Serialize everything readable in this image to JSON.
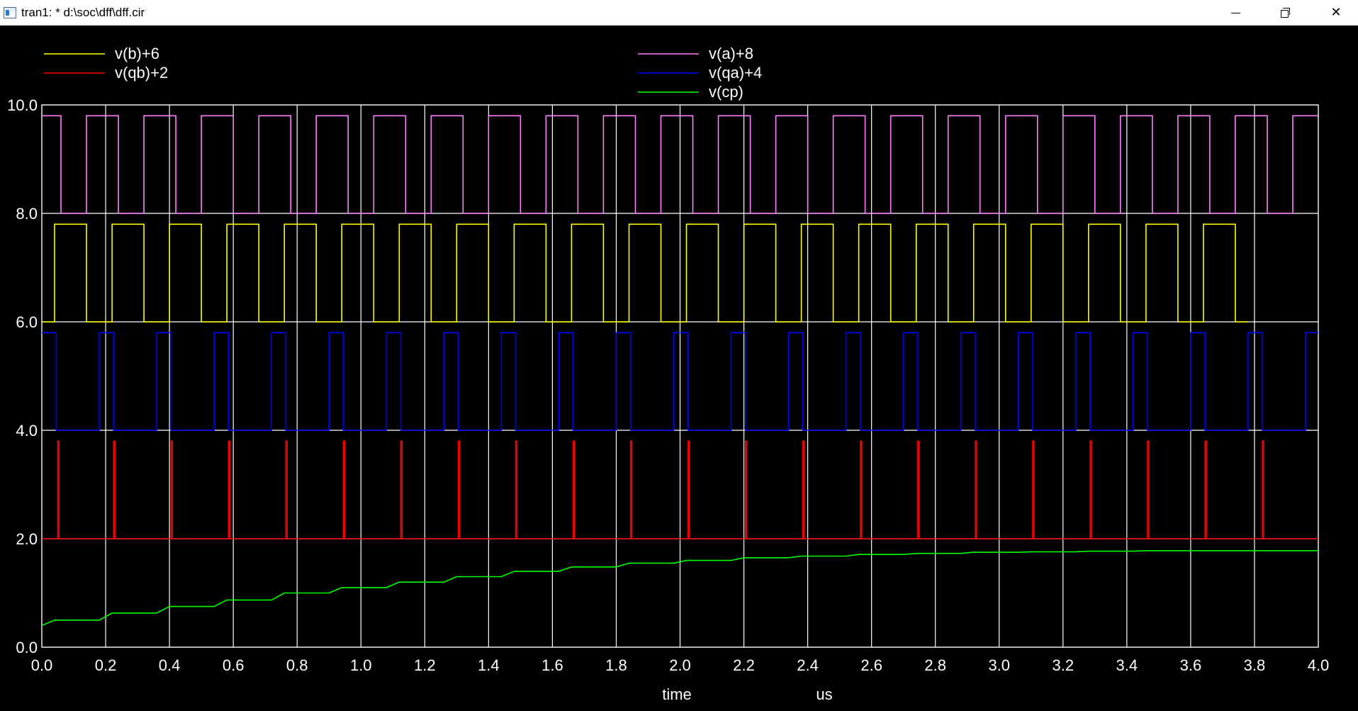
{
  "window": {
    "title": "tran1: * d:\\soc\\dff\\dff.cir",
    "minimize_label": "",
    "maximize_label": "",
    "close_label": "✕"
  },
  "chart_data": {
    "type": "line",
    "title": "",
    "xlabel": "time",
    "xunit": "us",
    "ylabel": "",
    "xlim": [
      0,
      4.0
    ],
    "ylim": [
      0,
      10.0
    ],
    "grid": true,
    "legend_position": "top",
    "x_ticks": [
      "0.0",
      "0.2",
      "0.4",
      "0.6",
      "0.8",
      "1.0",
      "1.2",
      "1.4",
      "1.6",
      "1.8",
      "2.0",
      "2.2",
      "2.4",
      "2.6",
      "2.8",
      "3.0",
      "3.2",
      "3.4",
      "3.6",
      "3.8",
      "4.0"
    ],
    "y_ticks": [
      "0.0",
      "2.0",
      "4.0",
      "6.0",
      "8.0",
      "10.0"
    ],
    "series": [
      {
        "name": "v(b)+6",
        "color": "#ffff00",
        "kind": "square",
        "low": 6.0,
        "high": 7.8,
        "period": 0.18,
        "high_start": 0.04,
        "high_end": 0.14,
        "t_end": 3.78
      },
      {
        "name": "v(a)+8",
        "color": "#ff80ff",
        "kind": "square",
        "low": 8.0,
        "high": 9.8,
        "period": 0.18,
        "high_start": -0.04,
        "high_end": 0.06,
        "t_end": 4.0
      },
      {
        "name": "v(qb)+2",
        "color": "#ff0000",
        "kind": "spikes",
        "low": 2.0,
        "high": 3.8,
        "times": [
          0.05,
          0.225,
          0.405,
          0.585,
          0.765,
          0.945,
          1.125,
          1.305,
          1.485,
          1.665,
          1.845,
          2.025,
          2.205,
          2.385,
          2.565,
          2.745,
          2.925,
          3.105,
          3.285,
          3.465,
          3.645,
          3.825
        ],
        "t_end": 4.0
      },
      {
        "name": "v(qa)+4",
        "color": "#0000ff",
        "kind": "square",
        "low": 4.0,
        "high": 5.8,
        "period": 0.18,
        "high_start": 0.0,
        "high_end": 0.045,
        "t_end": 4.0
      },
      {
        "name": "v(cp)",
        "color": "#00ff00",
        "kind": "staircase",
        "start": 0.4,
        "points": [
          [
            0.0,
            0.4
          ],
          [
            0.04,
            0.5
          ],
          [
            0.18,
            0.5
          ],
          [
            0.22,
            0.63
          ],
          [
            0.36,
            0.63
          ],
          [
            0.4,
            0.75
          ],
          [
            0.54,
            0.75
          ],
          [
            0.58,
            0.87
          ],
          [
            0.72,
            0.87
          ],
          [
            0.76,
            1.0
          ],
          [
            0.9,
            1.0
          ],
          [
            0.94,
            1.1
          ],
          [
            1.08,
            1.1
          ],
          [
            1.12,
            1.2
          ],
          [
            1.26,
            1.2
          ],
          [
            1.3,
            1.3
          ],
          [
            1.44,
            1.3
          ],
          [
            1.48,
            1.4
          ],
          [
            1.62,
            1.4
          ],
          [
            1.66,
            1.48
          ],
          [
            1.8,
            1.48
          ],
          [
            1.84,
            1.55
          ],
          [
            1.98,
            1.55
          ],
          [
            2.02,
            1.6
          ],
          [
            2.16,
            1.6
          ],
          [
            2.2,
            1.65
          ],
          [
            2.34,
            1.65
          ],
          [
            2.38,
            1.68
          ],
          [
            2.52,
            1.68
          ],
          [
            2.56,
            1.71
          ],
          [
            2.7,
            1.71
          ],
          [
            2.74,
            1.73
          ],
          [
            2.88,
            1.73
          ],
          [
            2.92,
            1.75
          ],
          [
            3.06,
            1.75
          ],
          [
            3.1,
            1.76
          ],
          [
            3.24,
            1.76
          ],
          [
            3.28,
            1.77
          ],
          [
            3.42,
            1.77
          ],
          [
            3.46,
            1.78
          ],
          [
            3.6,
            1.78
          ],
          [
            3.64,
            1.78
          ],
          [
            3.78,
            1.78
          ],
          [
            3.82,
            1.78
          ],
          [
            4.0,
            1.78
          ]
        ]
      }
    ]
  }
}
